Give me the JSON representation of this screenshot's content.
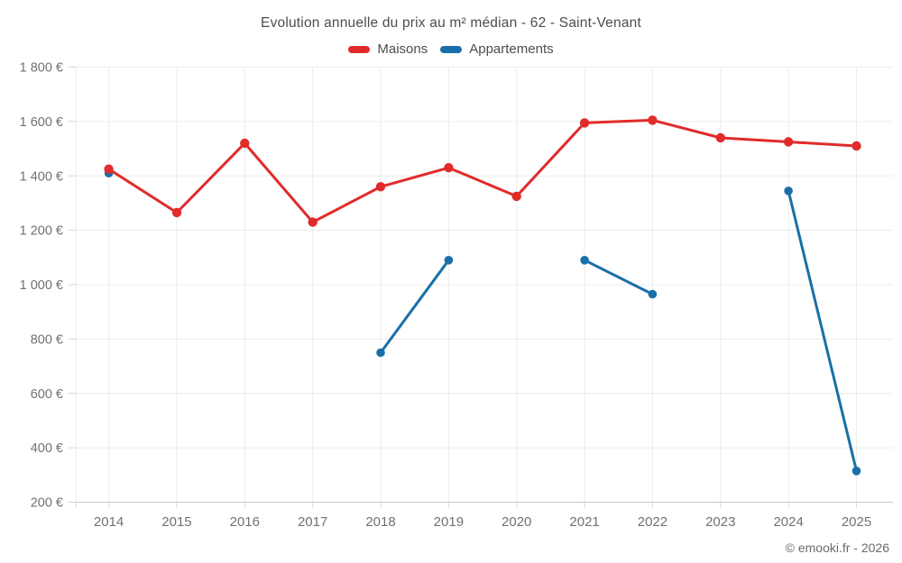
{
  "chart": {
    "title": "Evolution annuelle du prix au m² médian - 62 - Saint-Venant",
    "footer": "© emooki.fr - 2026"
  },
  "chart_data": {
    "type": "line",
    "categories": [
      "2014",
      "2015",
      "2016",
      "2017",
      "2018",
      "2019",
      "2020",
      "2021",
      "2022",
      "2023",
      "2024",
      "2025"
    ],
    "series": [
      {
        "name": "Maisons",
        "color": "#e12b2b",
        "values": [
          1425,
          1265,
          1520,
          1230,
          1360,
          1430,
          1325,
          1595,
          1605,
          1540,
          1525,
          1510
        ]
      },
      {
        "name": "Appartements",
        "color": "#1a6fa8",
        "values": [
          1410,
          null,
          null,
          null,
          750,
          1090,
          null,
          1090,
          965,
          null,
          1345,
          315
        ]
      }
    ],
    "title": "Evolution annuelle du prix au m² médian - 62 - Saint-Venant",
    "xlabel": "",
    "ylabel": "",
    "ylim": [
      200,
      1800
    ],
    "ytick_step": 200,
    "ytick_suffix": " €",
    "grid": true,
    "legend_position": "top",
    "connect_gaps": false
  },
  "colors": {
    "grid": "#ececec",
    "axis_line": "#c9c9c9",
    "tick_mark": "#d6d6d6",
    "tick_label": "#717171",
    "title_text": "#4d4d4d",
    "background": "#ffffff"
  }
}
